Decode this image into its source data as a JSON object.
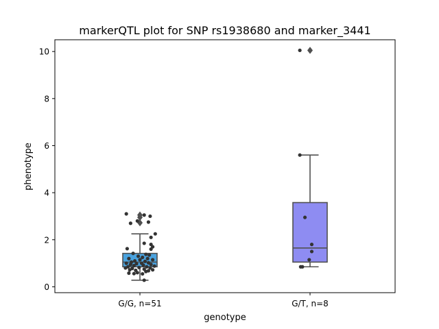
{
  "chart_data": {
    "type": "box",
    "title": "markerQTL plot for SNP rs1938680 and marker_3441",
    "xlabel": "genotype",
    "ylabel": "phenotype",
    "ylim": [
      -0.25,
      10.5
    ],
    "yticks": [
      0,
      2,
      4,
      6,
      8,
      10
    ],
    "categories": [
      "G/G, n=51",
      "G/T, n=8"
    ],
    "box_colors": [
      "#4aa3df",
      "#8e8cf2"
    ],
    "boxes": [
      {
        "category": "G/G, n=51",
        "whisker_low": 0.28,
        "q1": 0.85,
        "median": 1.05,
        "q3": 1.42,
        "whisker_high": 2.25,
        "outliers": [
          2.72,
          2.95,
          3.05
        ]
      },
      {
        "category": "G/T, n=8",
        "whisker_low": 0.85,
        "q1": 1.05,
        "median": 1.65,
        "q3": 3.58,
        "whisker_high": 5.6,
        "outliers": [
          10.05
        ]
      }
    ],
    "points": [
      {
        "category": "G/G, n=51",
        "jitter": -0.16,
        "y": 3.1
      },
      {
        "category": "G/G, n=51",
        "jitter": 0.05,
        "y": 3.05
      },
      {
        "category": "G/G, n=51",
        "jitter": 0.12,
        "y": 3.0
      },
      {
        "category": "G/G, n=51",
        "jitter": -0.03,
        "y": 2.8
      },
      {
        "category": "G/G, n=51",
        "jitter": -0.11,
        "y": 2.7
      },
      {
        "category": "G/G, n=51",
        "jitter": 0.1,
        "y": 2.75
      },
      {
        "category": "G/G, n=51",
        "jitter": 0.18,
        "y": 2.25
      },
      {
        "category": "G/G, n=51",
        "jitter": 0.13,
        "y": 2.1
      },
      {
        "category": "G/G, n=51",
        "jitter": 0.13,
        "y": 1.8
      },
      {
        "category": "G/G, n=51",
        "jitter": 0.05,
        "y": 1.85
      },
      {
        "category": "G/G, n=51",
        "jitter": 0.15,
        "y": 1.7
      },
      {
        "category": "G/G, n=51",
        "jitter": -0.15,
        "y": 1.62
      },
      {
        "category": "G/G, n=51",
        "jitter": 0.13,
        "y": 1.6
      },
      {
        "category": "G/G, n=51",
        "jitter": -0.08,
        "y": 1.42
      },
      {
        "category": "G/G, n=51",
        "jitter": 0.07,
        "y": 1.38
      },
      {
        "category": "G/G, n=51",
        "jitter": 0.11,
        "y": 1.35
      },
      {
        "category": "G/G, n=51",
        "jitter": -0.02,
        "y": 1.3
      },
      {
        "category": "G/G, n=51",
        "jitter": 0.03,
        "y": 1.25
      },
      {
        "category": "G/G, n=51",
        "jitter": 0.09,
        "y": 1.2
      },
      {
        "category": "G/G, n=51",
        "jitter": -0.13,
        "y": 1.2
      },
      {
        "category": "G/G, n=51",
        "jitter": 0.0,
        "y": 1.15
      },
      {
        "category": "G/G, n=51",
        "jitter": 0.15,
        "y": 1.15
      },
      {
        "category": "G/G, n=51",
        "jitter": -0.06,
        "y": 1.1
      },
      {
        "category": "G/G, n=51",
        "jitter": 0.06,
        "y": 1.08
      },
      {
        "category": "G/G, n=51",
        "jitter": -0.1,
        "y": 1.05
      },
      {
        "category": "G/G, n=51",
        "jitter": 0.1,
        "y": 1.02
      },
      {
        "category": "G/G, n=51",
        "jitter": -0.16,
        "y": 1.0
      },
      {
        "category": "G/G, n=51",
        "jitter": 0.02,
        "y": 1.0
      },
      {
        "category": "G/G, n=51",
        "jitter": -0.04,
        "y": 0.98
      },
      {
        "category": "G/G, n=51",
        "jitter": 0.13,
        "y": 0.95
      },
      {
        "category": "G/G, n=51",
        "jitter": -0.11,
        "y": 0.95
      },
      {
        "category": "G/G, n=51",
        "jitter": 0.04,
        "y": 0.92
      },
      {
        "category": "G/G, n=51",
        "jitter": -0.07,
        "y": 0.9
      },
      {
        "category": "G/G, n=51",
        "jitter": 0.17,
        "y": 0.88
      },
      {
        "category": "G/G, n=51",
        "jitter": -0.14,
        "y": 0.85
      },
      {
        "category": "G/G, n=51",
        "jitter": 0.08,
        "y": 0.85
      },
      {
        "category": "G/G, n=51",
        "jitter": -0.01,
        "y": 0.82
      },
      {
        "category": "G/G, n=51",
        "jitter": -0.17,
        "y": 0.8
      },
      {
        "category": "G/G, n=51",
        "jitter": 0.12,
        "y": 0.8
      },
      {
        "category": "G/G, n=51",
        "jitter": -0.09,
        "y": 0.78
      },
      {
        "category": "G/G, n=51",
        "jitter": 0.05,
        "y": 0.75
      },
      {
        "category": "G/G, n=51",
        "jitter": -0.12,
        "y": 0.72
      },
      {
        "category": "G/G, n=51",
        "jitter": 0.15,
        "y": 0.72
      },
      {
        "category": "G/G, n=51",
        "jitter": -0.05,
        "y": 0.7
      },
      {
        "category": "G/G, n=51",
        "jitter": 0.1,
        "y": 0.68
      },
      {
        "category": "G/G, n=51",
        "jitter": 0.07,
        "y": 0.65
      },
      {
        "category": "G/G, n=51",
        "jitter": -0.03,
        "y": 0.6
      },
      {
        "category": "G/G, n=51",
        "jitter": -0.13,
        "y": 0.58
      },
      {
        "category": "G/G, n=51",
        "jitter": -0.07,
        "y": 0.56
      },
      {
        "category": "G/G, n=51",
        "jitter": 0.03,
        "y": 0.55
      },
      {
        "category": "G/G, n=51",
        "jitter": 0.05,
        "y": 0.28
      },
      {
        "category": "G/T, n=8",
        "jitter": -0.12,
        "y": 10.05
      },
      {
        "category": "G/T, n=8",
        "jitter": -0.12,
        "y": 5.6
      },
      {
        "category": "G/T, n=8",
        "jitter": -0.06,
        "y": 2.95
      },
      {
        "category": "G/T, n=8",
        "jitter": 0.02,
        "y": 1.8
      },
      {
        "category": "G/T, n=8",
        "jitter": 0.02,
        "y": 1.5
      },
      {
        "category": "G/T, n=8",
        "jitter": -0.01,
        "y": 1.15
      },
      {
        "category": "G/T, n=8",
        "jitter": -0.09,
        "y": 0.85
      },
      {
        "category": "G/T, n=8",
        "jitter": -0.11,
        "y": 0.85
      }
    ],
    "grid": false,
    "legend": "none"
  }
}
